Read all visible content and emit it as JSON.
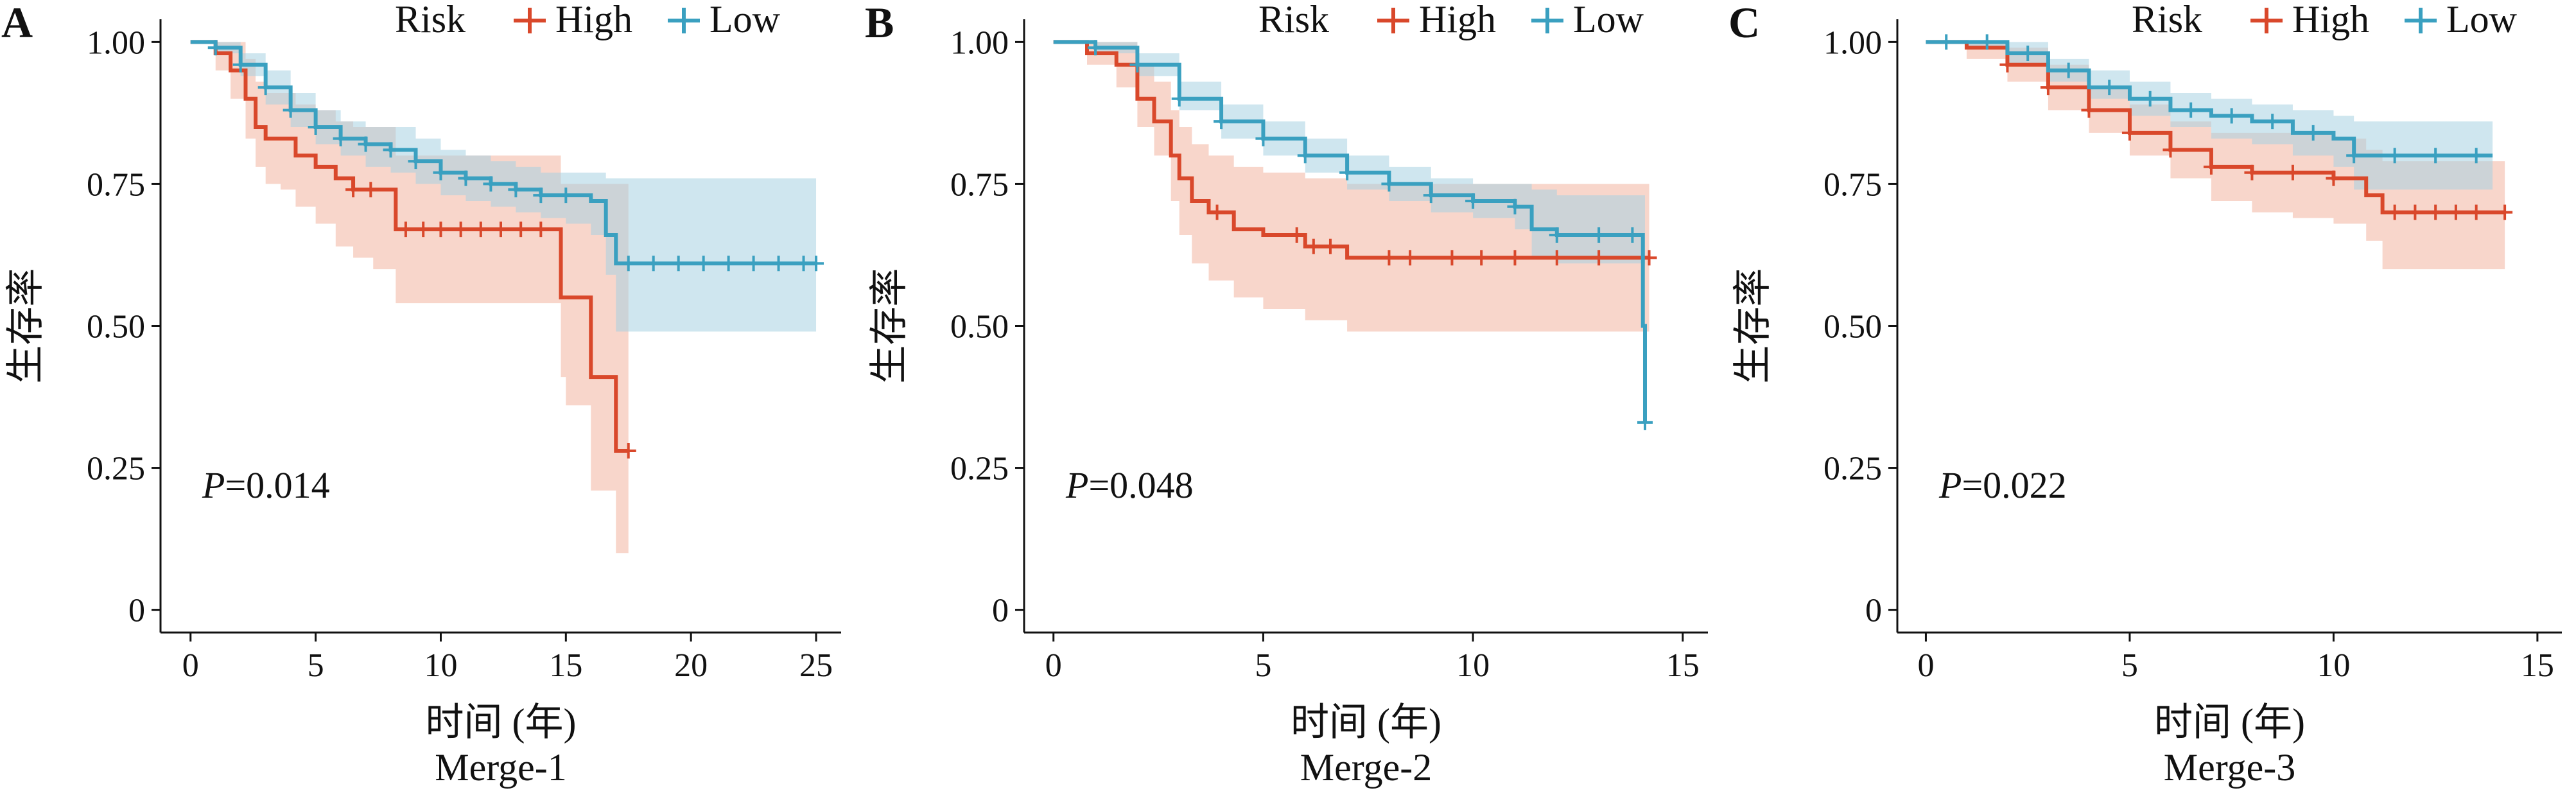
{
  "chart_data": [
    {
      "type": "line",
      "subtype": "kaplan-meier",
      "panel": "A",
      "title": "Merge-1",
      "xlabel": "时间 (年)",
      "ylabel": "生存率",
      "xlim": [
        -1.2,
        26
      ],
      "ylim": [
        -0.04,
        1.04
      ],
      "xticks": [
        0,
        5,
        10,
        15,
        20,
        25
      ],
      "yticks": [
        0,
        0.25,
        0.5,
        0.75,
        1.0
      ],
      "ytick_labels": [
        "0",
        "0.25",
        "0.50",
        "0.75",
        "1.00"
      ],
      "p_label": "P",
      "p_value": "=0.014",
      "legend": {
        "title": "Risk",
        "placement": "top"
      },
      "series": [
        {
          "name": "High",
          "color": "#d9482b",
          "fill": "#f3b5a1",
          "x": [
            0,
            1,
            1.6,
            2.2,
            2.6,
            3.0,
            3.6,
            4.2,
            5,
            5.8,
            6.5,
            7.3,
            8.2,
            9.5,
            11.5,
            13.5,
            14.8,
            15,
            16,
            17,
            17.5
          ],
          "y": [
            1.0,
            0.98,
            0.95,
            0.9,
            0.85,
            0.83,
            0.83,
            0.8,
            0.78,
            0.76,
            0.74,
            0.74,
            0.67,
            0.67,
            0.67,
            0.67,
            0.55,
            0.55,
            0.41,
            0.28,
            0.28
          ],
          "lower": [
            1.0,
            0.95,
            0.9,
            0.83,
            0.78,
            0.75,
            0.74,
            0.71,
            0.68,
            0.64,
            0.62,
            0.6,
            0.54,
            0.54,
            0.54,
            0.54,
            0.41,
            0.36,
            0.21,
            0.1,
            0.1
          ],
          "upper": [
            1.0,
            1.0,
            1.0,
            0.97,
            0.93,
            0.91,
            0.91,
            0.89,
            0.88,
            0.86,
            0.85,
            0.85,
            0.8,
            0.8,
            0.8,
            0.8,
            0.75,
            0.75,
            0.75,
            0.75,
            0.75
          ],
          "censor_x": [
            6.5,
            7.2,
            8.6,
            9.3,
            10,
            10.8,
            11.6,
            12.4,
            13.2,
            14,
            17.5
          ]
        },
        {
          "name": "Low",
          "color": "#3aa0c0",
          "fill": "#a7d2e2",
          "x": [
            0,
            1,
            2,
            3,
            4,
            5,
            6,
            7,
            8,
            9,
            10,
            11,
            12,
            13,
            14,
            15,
            16,
            16.6,
            17,
            18,
            20,
            25
          ],
          "y": [
            1.0,
            0.99,
            0.96,
            0.92,
            0.88,
            0.85,
            0.83,
            0.82,
            0.81,
            0.79,
            0.77,
            0.76,
            0.75,
            0.74,
            0.73,
            0.73,
            0.72,
            0.66,
            0.61,
            0.61,
            0.61,
            0.61
          ],
          "lower": [
            1.0,
            0.98,
            0.94,
            0.89,
            0.85,
            0.82,
            0.8,
            0.78,
            0.77,
            0.75,
            0.73,
            0.72,
            0.71,
            0.7,
            0.69,
            0.68,
            0.66,
            0.59,
            0.49,
            0.49,
            0.49,
            0.49
          ],
          "upper": [
            1.0,
            1.0,
            0.98,
            0.95,
            0.91,
            0.88,
            0.86,
            0.85,
            0.85,
            0.83,
            0.81,
            0.8,
            0.79,
            0.78,
            0.77,
            0.77,
            0.77,
            0.76,
            0.76,
            0.76,
            0.76,
            0.76
          ],
          "censor_x": [
            1,
            2,
            3,
            4,
            5,
            6,
            7,
            8,
            9,
            10,
            11,
            12,
            13,
            14,
            15,
            17.5,
            18.5,
            19.5,
            20.5,
            21.5,
            22.5,
            23.5,
            24.5,
            25
          ]
        }
      ]
    },
    {
      "type": "line",
      "subtype": "kaplan-meier",
      "panel": "B",
      "title": "Merge-2",
      "xlabel": "时间 (年)",
      "ylabel": "生存率",
      "xlim": [
        -0.7,
        15.6
      ],
      "ylim": [
        -0.04,
        1.04
      ],
      "xticks": [
        0,
        5,
        10,
        15
      ],
      "yticks": [
        0,
        0.25,
        0.5,
        0.75,
        1.0
      ],
      "ytick_labels": [
        "0",
        "0.25",
        "0.50",
        "0.75",
        "1.00"
      ],
      "p_label": "P",
      "p_value": "=0.048",
      "legend": {
        "title": "Risk",
        "placement": "top"
      },
      "series": [
        {
          "name": "High",
          "color": "#d9482b",
          "fill": "#f3b5a1",
          "x": [
            0,
            0.8,
            1.5,
            2.0,
            2.4,
            2.8,
            3.0,
            3.3,
            3.7,
            4.3,
            5.0,
            6.0,
            7.0,
            10,
            14.2
          ],
          "y": [
            1.0,
            0.98,
            0.96,
            0.9,
            0.86,
            0.8,
            0.76,
            0.72,
            0.7,
            0.67,
            0.66,
            0.64,
            0.62,
            0.62,
            0.62
          ],
          "lower": [
            1.0,
            0.96,
            0.92,
            0.85,
            0.8,
            0.72,
            0.66,
            0.61,
            0.58,
            0.55,
            0.53,
            0.51,
            0.49,
            0.49,
            0.49
          ],
          "upper": [
            1.0,
            1.0,
            1.0,
            0.96,
            0.93,
            0.88,
            0.85,
            0.82,
            0.8,
            0.78,
            0.77,
            0.76,
            0.75,
            0.75,
            0.75
          ],
          "censor_x": [
            3.9,
            5.8,
            6.2,
            6.6,
            8.0,
            8.5,
            9.5,
            10.2,
            11,
            12,
            13,
            14.2
          ]
        },
        {
          "name": "Low",
          "color": "#3aa0c0",
          "fill": "#a7d2e2",
          "x": [
            0,
            1,
            2,
            3,
            4,
            5,
            6,
            7,
            8,
            9,
            10,
            11,
            11.4,
            12,
            13,
            14.0,
            14.05,
            14.1
          ],
          "y": [
            1.0,
            0.99,
            0.96,
            0.9,
            0.86,
            0.83,
            0.8,
            0.77,
            0.75,
            0.73,
            0.72,
            0.71,
            0.67,
            0.66,
            0.66,
            0.66,
            0.5,
            0.33
          ],
          "lower": [
            1.0,
            0.98,
            0.94,
            0.88,
            0.83,
            0.8,
            0.77,
            0.74,
            0.72,
            0.7,
            0.69,
            0.67,
            0.62,
            0.61,
            0.61,
            0.61,
            0.61,
            0.61
          ],
          "upper": [
            1.0,
            1.0,
            0.98,
            0.93,
            0.89,
            0.86,
            0.83,
            0.8,
            0.78,
            0.76,
            0.75,
            0.75,
            0.74,
            0.73,
            0.73,
            0.73,
            0.73,
            0.73
          ],
          "censor_x": [
            1,
            2,
            3,
            4,
            5,
            6,
            7,
            8,
            9,
            10,
            11,
            12,
            13,
            13.8,
            14.1
          ]
        }
      ]
    },
    {
      "type": "line",
      "subtype": "kaplan-meier",
      "panel": "C",
      "title": "Merge-3",
      "xlabel": "时间 (年)",
      "ylabel": "生存率",
      "xlim": [
        -0.7,
        15.6
      ],
      "ylim": [
        -0.04,
        1.04
      ],
      "xticks": [
        0,
        5,
        10,
        15
      ],
      "yticks": [
        0,
        0.25,
        0.5,
        0.75,
        1.0
      ],
      "ytick_labels": [
        "0",
        "0.25",
        "0.50",
        "0.75",
        "1.00"
      ],
      "p_label": "P",
      "p_value": "=0.022",
      "legend": {
        "title": "Risk",
        "placement": "top"
      },
      "series": [
        {
          "name": "High",
          "color": "#d9482b",
          "fill": "#f3b5a1",
          "x": [
            0,
            1,
            2,
            3,
            4,
            5,
            6,
            7,
            8,
            9,
            10,
            10.8,
            11.2,
            12,
            14.2
          ],
          "y": [
            1.0,
            0.99,
            0.96,
            0.92,
            0.88,
            0.84,
            0.81,
            0.78,
            0.77,
            0.77,
            0.76,
            0.73,
            0.7,
            0.7,
            0.7
          ],
          "lower": [
            1.0,
            0.97,
            0.93,
            0.88,
            0.84,
            0.8,
            0.76,
            0.72,
            0.7,
            0.69,
            0.68,
            0.65,
            0.6,
            0.6,
            0.6
          ],
          "upper": [
            1.0,
            1.0,
            0.99,
            0.96,
            0.92,
            0.89,
            0.86,
            0.84,
            0.84,
            0.84,
            0.83,
            0.81,
            0.79,
            0.79,
            0.79
          ],
          "censor_x": [
            2,
            3,
            4,
            5,
            6,
            7,
            8,
            9,
            10,
            11.5,
            12,
            12.5,
            13,
            13.5,
            14.2
          ]
        },
        {
          "name": "Low",
          "color": "#3aa0c0",
          "fill": "#a7d2e2",
          "x": [
            0,
            1,
            2,
            3,
            4,
            5,
            6,
            7,
            8,
            9,
            10,
            10.5,
            11,
            12,
            13.9
          ],
          "y": [
            1.0,
            1.0,
            0.98,
            0.95,
            0.92,
            0.9,
            0.88,
            0.87,
            0.86,
            0.84,
            0.83,
            0.8,
            0.8,
            0.8,
            0.8
          ],
          "lower": [
            1.0,
            0.99,
            0.96,
            0.93,
            0.9,
            0.87,
            0.85,
            0.83,
            0.82,
            0.8,
            0.78,
            0.74,
            0.74,
            0.74,
            0.74
          ],
          "upper": [
            1.0,
            1.0,
            1.0,
            0.97,
            0.95,
            0.93,
            0.91,
            0.9,
            0.89,
            0.88,
            0.87,
            0.86,
            0.86,
            0.86,
            0.86
          ],
          "censor_x": [
            0.5,
            1.5,
            2.5,
            3.5,
            4.5,
            5.5,
            6.5,
            7.5,
            8.5,
            9.5,
            10.5,
            11.5,
            12.5,
            13.5
          ]
        }
      ]
    }
  ]
}
